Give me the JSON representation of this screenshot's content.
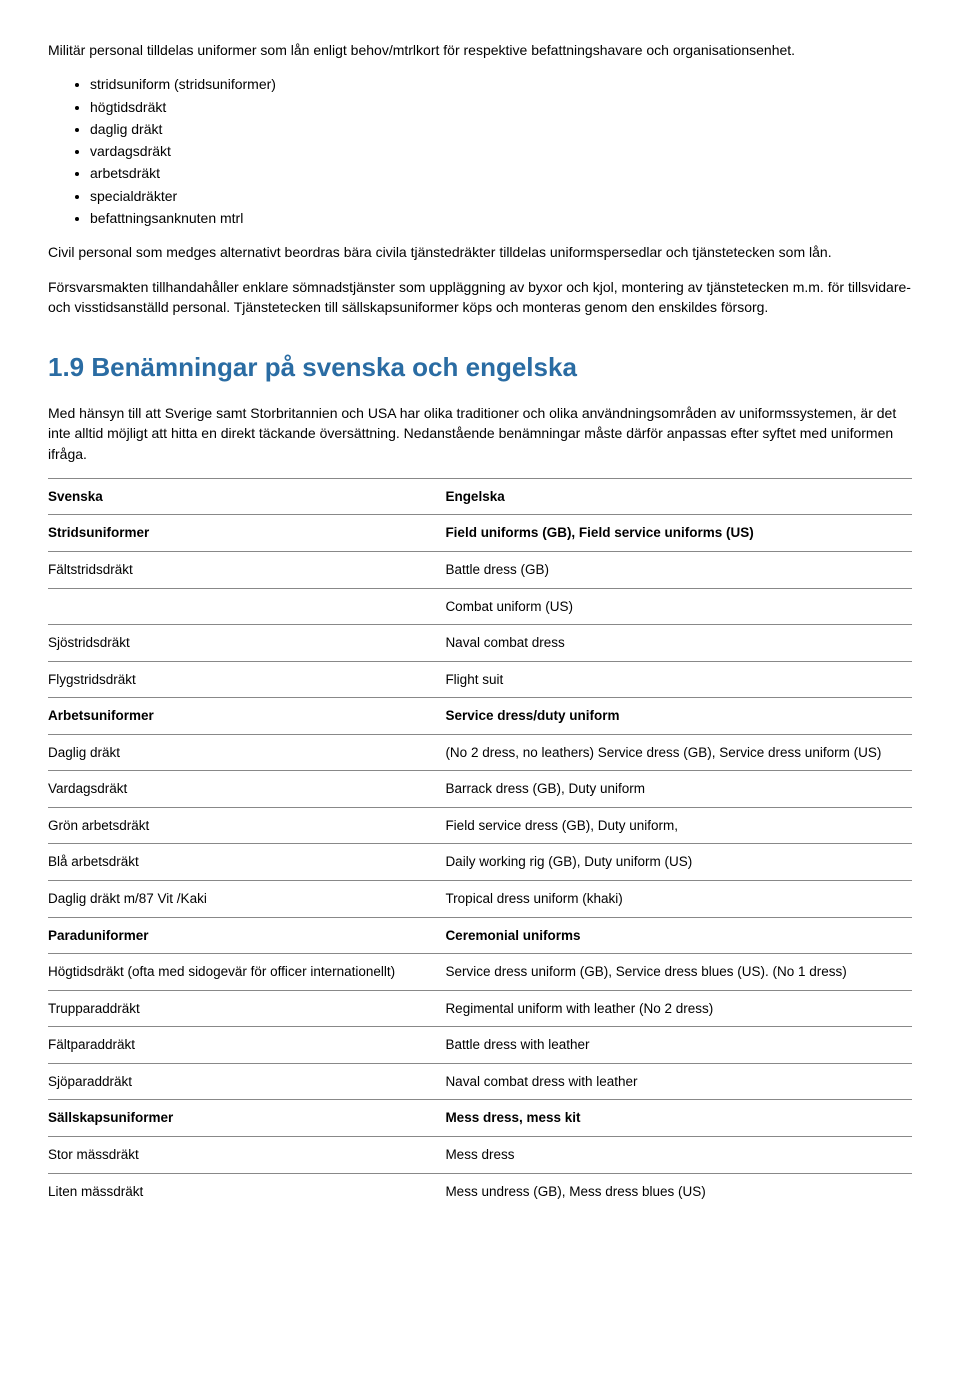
{
  "intro_para": "Militär personal tilldelas uniformer som lån enligt behov/mtrlkort för respektive befattningshavare och organisationsenhet.",
  "bullet_items": [
    "stridsuniform (stridsuniformer)",
    "högtidsdräkt",
    "daglig dräkt",
    "vardagsdräkt",
    "arbetsdräkt",
    "specialdräkter",
    "befattningsanknuten mtrl"
  ],
  "para_civil": "Civil personal som medges alternativt beordras bära civila tjänstedräkter tilldelas uniformspersedlar och tjänstetecken som lån.",
  "para_forsvar": "Försvarsmakten tillhandahåller enklare sömnadstjänster som uppläggning av byxor och kjol, montering av tjänstetecken m.m. för tillsvidare-och visstidsanställd personal. Tjänstetecken till sällskapsuniformer köps och monteras genom den enskildes försorg.",
  "heading": "1.9 Benämningar på svenska och engelska",
  "section_intro": "Med hänsyn till att Sverige samt Storbritannien och USA har olika traditioner och olika användningsområden av uniformssystemen, är det inte alltid möjligt att hitta en direkt täckande översättning. Nedanstående benämningar måste därför anpassas efter syftet med uniformen ifråga.",
  "table": {
    "rows": [
      {
        "sv": "Svenska",
        "en": "Engelska",
        "bold": true
      },
      {
        "sv": "Stridsuniformer",
        "en": "Field uniforms (GB), Field service uniforms (US)",
        "bold": true
      },
      {
        "sv": "Fältstridsdräkt",
        "en": "Battle dress (GB)",
        "bold": false
      },
      {
        "sv": "",
        "en": "Combat uniform (US)",
        "bold": false
      },
      {
        "sv": "Sjöstridsdräkt",
        "en": "Naval combat dress",
        "bold": false
      },
      {
        "sv": "Flygstridsdräkt",
        "en": "Flight suit",
        "bold": false
      },
      {
        "sv": "Arbetsuniformer",
        "en": "Service dress/duty uniform",
        "bold": true
      },
      {
        "sv": "Daglig dräkt",
        "en": "(No 2 dress, no leathers) Service dress (GB), Service dress uniform (US)",
        "bold": false
      },
      {
        "sv": "Vardagsdräkt",
        "en": "Barrack dress (GB), Duty uniform",
        "bold": false
      },
      {
        "sv": "Grön arbetsdräkt",
        "en": "Field service dress (GB), Duty uniform,",
        "bold": false
      },
      {
        "sv": "Blå arbetsdräkt",
        "en": "Daily working rig (GB), Duty uniform (US)",
        "bold": false
      },
      {
        "sv": "Daglig dräkt m/87 Vit /Kaki",
        "en": "Tropical dress uniform (khaki)",
        "bold": false
      },
      {
        "sv": "Paraduniformer",
        "en": "Ceremonial uniforms",
        "bold": true
      },
      {
        "sv": "Högtidsdräkt (ofta med sidogevär för officer internationellt)",
        "en": "Service dress uniform (GB), Service dress blues (US). (No 1 dress)",
        "bold": false
      },
      {
        "sv": "Trupparaddräkt",
        "en": "Regimental uniform with leather (No 2 dress)",
        "bold": false
      },
      {
        "sv": "Fältparaddräkt",
        "en": "Battle dress with leather",
        "bold": false
      },
      {
        "sv": "Sjöparaddräkt",
        "en": "Naval combat dress with leather",
        "bold": false
      },
      {
        "sv": "Sällskapsuniformer",
        "en": "Mess dress, mess kit",
        "bold": true
      },
      {
        "sv": "Stor mässdräkt",
        "en": "Mess dress",
        "bold": false
      },
      {
        "sv": "Liten mässdräkt",
        "en": "Mess undress (GB), Mess dress blues (US)",
        "bold": false
      }
    ]
  }
}
